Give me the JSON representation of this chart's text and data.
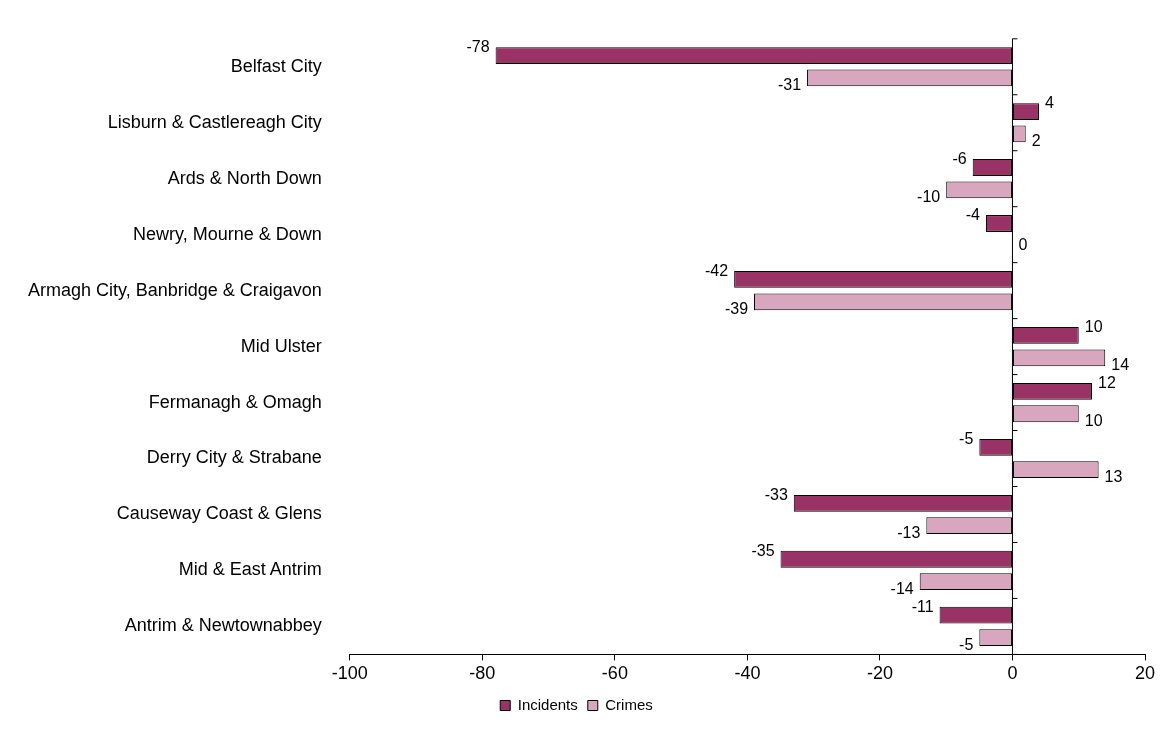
{
  "chart_data": {
    "type": "bar",
    "orientation": "horizontal",
    "categories": [
      "Belfast City",
      "Lisburn & Castlereagh City",
      "Ards & North Down",
      "Newry, Mourne & Down",
      "Armagh City, Banbridge & Craigavon",
      "Mid Ulster",
      "Fermanagh & Omagh",
      "Derry City & Strabane",
      "Causeway Coast & Glens",
      "Mid & East Antrim",
      "Antrim & Newtownabbey"
    ],
    "series": [
      {
        "name": "Incidents",
        "color": "#993366",
        "values": [
          -78,
          4,
          -6,
          -4,
          -42,
          10,
          12,
          -5,
          -33,
          -35,
          -11
        ]
      },
      {
        "name": "Crimes",
        "color": "#d8a6be",
        "values": [
          -31,
          2,
          -10,
          0,
          -39,
          14,
          10,
          13,
          -13,
          -14,
          -5
        ]
      }
    ],
    "xlim": [
      -100,
      20
    ],
    "xticks": [
      -100,
      -80,
      -60,
      -40,
      -20,
      0,
      20
    ],
    "legend": "bottom",
    "data_labels": true
  }
}
